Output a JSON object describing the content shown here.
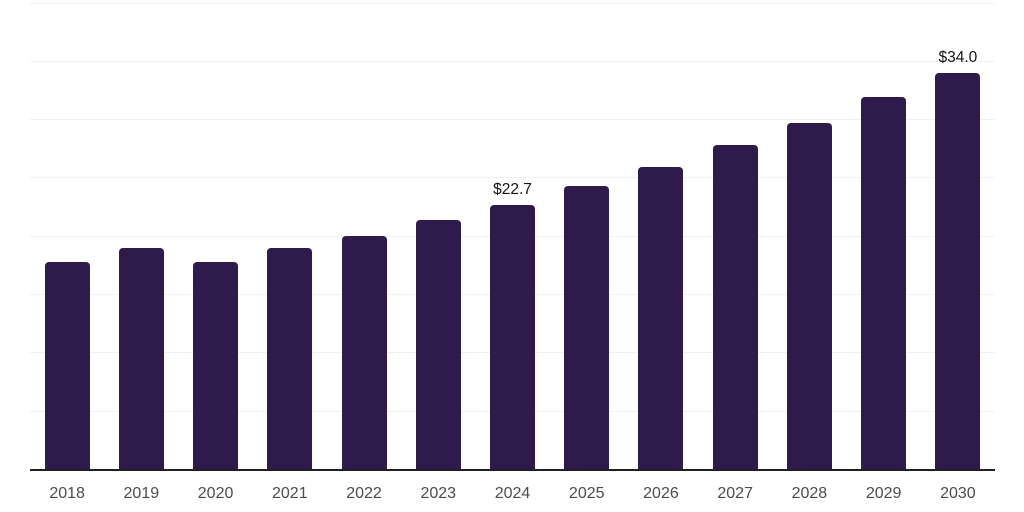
{
  "chart_data": {
    "type": "bar",
    "title": "",
    "xlabel": "",
    "ylabel": "",
    "categories": [
      "2018",
      "2019",
      "2020",
      "2021",
      "2022",
      "2023",
      "2024",
      "2025",
      "2026",
      "2027",
      "2028",
      "2029",
      "2030"
    ],
    "values": [
      17.8,
      19.0,
      17.8,
      19.0,
      20.0,
      21.4,
      22.7,
      24.3,
      25.9,
      27.8,
      29.7,
      31.9,
      34.0
    ],
    "annotations": [
      {
        "category": "2024",
        "label": "$22.7"
      },
      {
        "category": "2030",
        "label": "$34.0"
      }
    ],
    "ylim": [
      0,
      40
    ],
    "y_gridline_step": 5,
    "y_axis_labels_visible": false,
    "grid": true,
    "legend": false
  },
  "style": {
    "background": "#ffffff",
    "bar_color": "#2f1a4c",
    "gridline_color": "#f1f1f3",
    "axis_line_color": "#202020",
    "tick_label_color": "#4c4c4e",
    "annotation_color": "#141414"
  }
}
